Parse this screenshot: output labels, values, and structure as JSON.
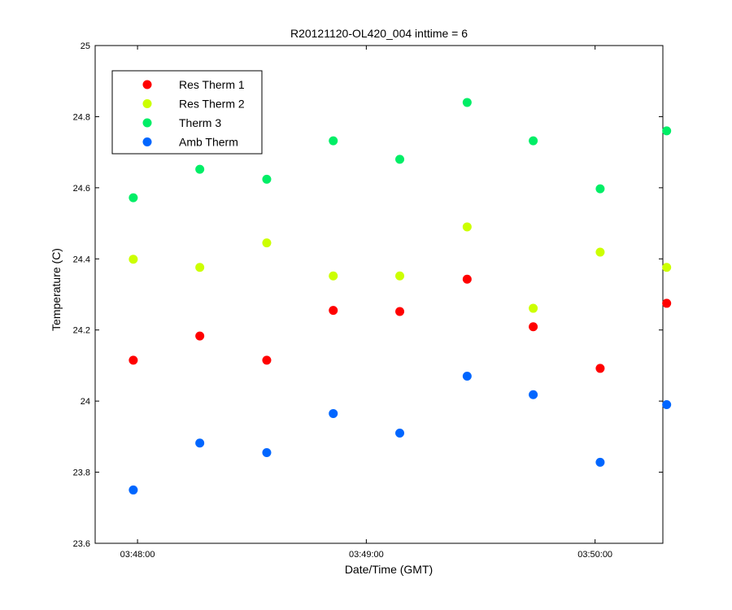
{
  "chart_data": {
    "type": "scatter",
    "title": "R20121120-OL420_004 inttime = 6",
    "xlabel": "Date/Time (GMT)",
    "ylabel": "Temperature (C)",
    "x_unit": "seconds since 03:48:00 GMT",
    "xlim": [
      -100,
      1240
    ],
    "ylim": [
      23.6,
      25
    ],
    "xticks": [
      {
        "value": 0,
        "label": "03:48:00"
      },
      {
        "value": 540,
        "label": "03:49:00"
      },
      {
        "value": 1080,
        "label": "03:50:00"
      }
    ],
    "yticks": [
      {
        "value": 23.6,
        "label": "23.6"
      },
      {
        "value": 23.8,
        "label": "23.8"
      },
      {
        "value": 24.0,
        "label": "24"
      },
      {
        "value": 24.2,
        "label": "24.2"
      },
      {
        "value": 24.4,
        "label": "24.4"
      },
      {
        "value": 24.6,
        "label": "24.6"
      },
      {
        "value": 24.8,
        "label": "24.8"
      },
      {
        "value": 25.0,
        "label": "25"
      }
    ],
    "x": [
      -10,
      147,
      305,
      462,
      619,
      778,
      934,
      1092,
      1249
    ],
    "series": [
      {
        "name": "Res Therm 1",
        "color": "#ff0000",
        "values": [
          24.115,
          24.183,
          24.115,
          24.255,
          24.252,
          24.343,
          24.209,
          24.092,
          24.275
        ]
      },
      {
        "name": "Res Therm 2",
        "color": "#ccff00",
        "values": [
          24.399,
          24.376,
          24.445,
          24.352,
          24.352,
          24.49,
          24.261,
          24.419,
          24.376
        ]
      },
      {
        "name": "Therm 3",
        "color": "#00ee66",
        "values": [
          24.572,
          24.652,
          24.624,
          24.732,
          24.68,
          24.84,
          24.732,
          24.597,
          24.76
        ]
      },
      {
        "name": "Amb Therm",
        "color": "#0066ff",
        "values": [
          23.75,
          23.882,
          23.855,
          23.965,
          23.91,
          24.07,
          24.018,
          23.828,
          23.99
        ]
      }
    ],
    "legend_position": "top-left",
    "grid": false
  }
}
